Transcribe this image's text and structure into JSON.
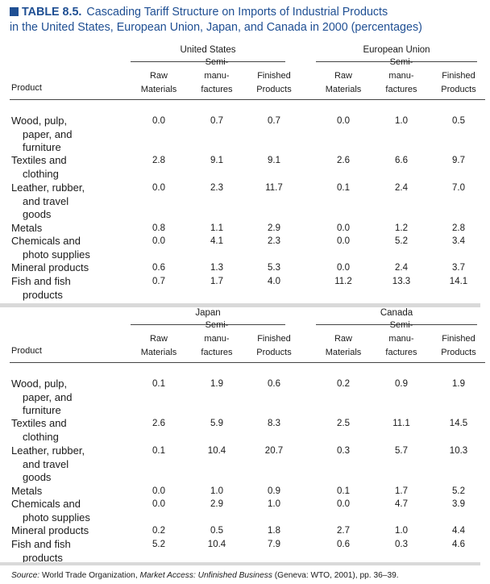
{
  "title": {
    "number": "TABLE 8.5.",
    "line1": "Cascading Tariff Structure on Imports of Industrial Products",
    "line2": "in the United States, European Union, Japan, and Canada in 2000 (percentages)"
  },
  "header": {
    "product": "Product",
    "raw": [
      "Raw",
      "Materials"
    ],
    "semi": [
      "Semi-",
      "manu-",
      "factures"
    ],
    "finished": [
      "Finished",
      "Products"
    ]
  },
  "products": [
    [
      "Wood, pulp,",
      "paper, and",
      "furniture"
    ],
    [
      "Textiles and",
      "clothing"
    ],
    [
      "Leather, rubber,",
      "and travel",
      "goods"
    ],
    [
      "Metals"
    ],
    [
      "Chemicals and",
      "photo supplies"
    ],
    [
      "Mineral products"
    ],
    [
      "Fish and fish",
      "products"
    ]
  ],
  "panels": [
    {
      "regions": [
        {
          "name": "United States",
          "values": [
            [
              "0.0",
              "0.7",
              "0.7"
            ],
            [
              "2.8",
              "9.1",
              "9.1"
            ],
            [
              "0.0",
              "2.3",
              "11.7"
            ],
            [
              "0.8",
              "1.1",
              "2.9"
            ],
            [
              "0.0",
              "4.1",
              "2.3"
            ],
            [
              "0.6",
              "1.3",
              "5.3"
            ],
            [
              "0.7",
              "1.7",
              "4.0"
            ]
          ]
        },
        {
          "name": "European Union",
          "values": [
            [
              "0.0",
              "1.0",
              "0.5"
            ],
            [
              "2.6",
              "6.6",
              "9.7"
            ],
            [
              "0.1",
              "2.4",
              "7.0"
            ],
            [
              "0.0",
              "1.2",
              "2.8"
            ],
            [
              "0.0",
              "5.2",
              "3.4"
            ],
            [
              "0.0",
              "2.4",
              "3.7"
            ],
            [
              "11.2",
              "13.3",
              "14.1"
            ]
          ]
        }
      ]
    },
    {
      "regions": [
        {
          "name": "Japan",
          "values": [
            [
              "0.1",
              "1.9",
              "0.6"
            ],
            [
              "2.6",
              "5.9",
              "8.3"
            ],
            [
              "0.1",
              "10.4",
              "20.7"
            ],
            [
              "0.0",
              "1.0",
              "0.9"
            ],
            [
              "0.0",
              "2.9",
              "1.0"
            ],
            [
              "0.2",
              "0.5",
              "1.8"
            ],
            [
              "5.2",
              "10.4",
              "7.9"
            ]
          ]
        },
        {
          "name": "Canada",
          "values": [
            [
              "0.2",
              "0.9",
              "1.9"
            ],
            [
              "2.5",
              "11.1",
              "14.5"
            ],
            [
              "0.3",
              "5.7",
              "10.3"
            ],
            [
              "0.1",
              "1.7",
              "5.2"
            ],
            [
              "0.0",
              "4.7",
              "3.9"
            ],
            [
              "2.7",
              "1.0",
              "4.4"
            ],
            [
              "0.6",
              "0.3",
              "4.6"
            ]
          ]
        }
      ]
    }
  ],
  "source": {
    "label": "Source:",
    "org": "World Trade Organization,",
    "book": "Market Access: Unfinished Business",
    "pub": "(Geneva: WTO, 2001), pp. 36–39."
  }
}
